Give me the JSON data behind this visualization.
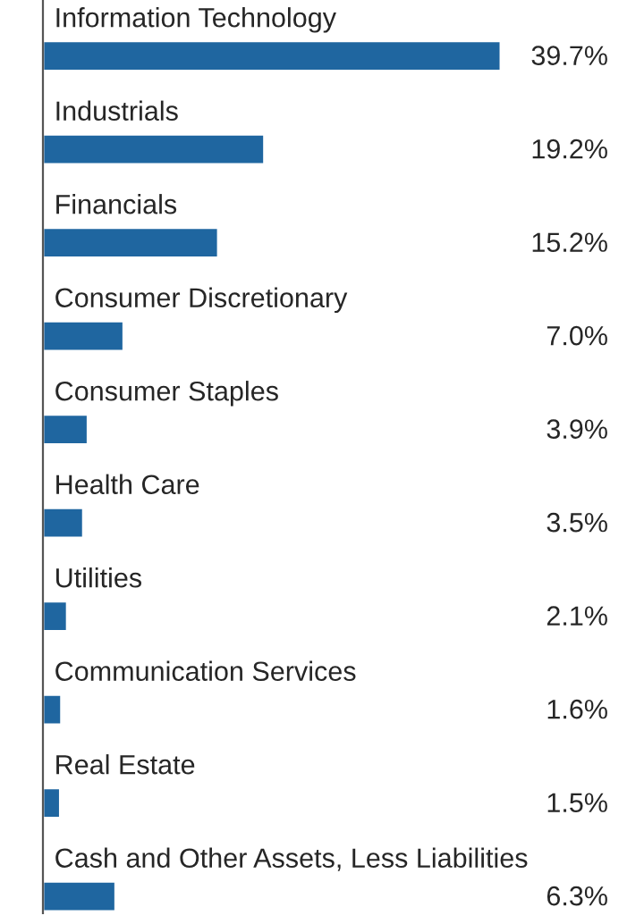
{
  "chart_data": {
    "type": "bar",
    "orientation": "horizontal",
    "categories": [
      "Information Technology",
      "Industrials",
      "Financials",
      "Consumer Discretionary",
      "Consumer Staples",
      "Health Care",
      "Utilities",
      "Communication Services",
      "Real Estate",
      "Cash and Other Assets, Less Liabilities"
    ],
    "values": [
      39.7,
      19.2,
      15.2,
      7.0,
      3.9,
      3.5,
      2.1,
      1.6,
      1.5,
      6.3
    ],
    "value_labels": [
      "39.7%",
      "19.2%",
      "15.2%",
      "7.0%",
      "3.9%",
      "3.5%",
      "2.1%",
      "1.6%",
      "1.5%",
      "6.3%"
    ],
    "color": "#1f66a0"
  }
}
